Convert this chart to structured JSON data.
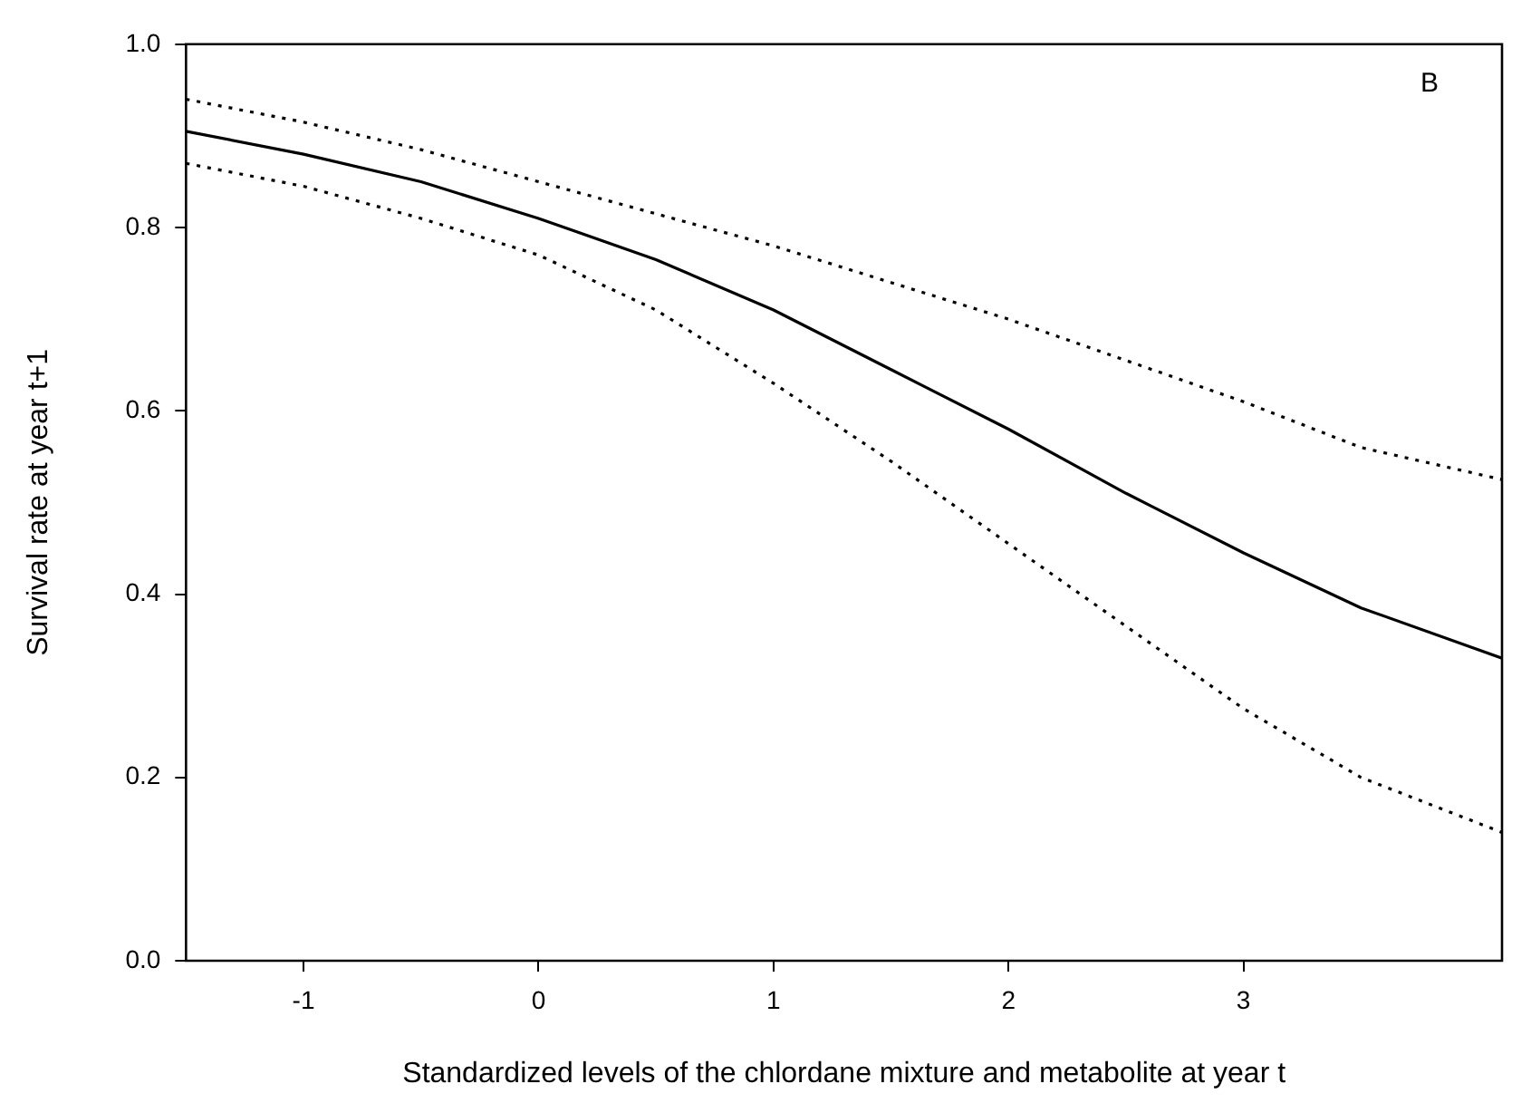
{
  "chart_data": {
    "type": "line",
    "xlabel": "Standardized levels of the chlordane mixture and metabolite at year t",
    "ylabel": "Survival rate at year t+1",
    "annotations": [
      "B"
    ],
    "x": [
      -1.5,
      -1,
      -0.5,
      0,
      0.5,
      1,
      1.5,
      2,
      2.5,
      3,
      3.5,
      4.1
    ],
    "series": [
      {
        "color": "#000000",
        "line_style": "solid",
        "values": [
          0.905,
          0.88,
          0.85,
          0.81,
          0.765,
          0.71,
          0.645,
          0.58,
          0.51,
          0.445,
          0.385,
          0.33
        ]
      },
      {
        "color": "#000000",
        "line_style": "dotted",
        "values": [
          0.94,
          0.915,
          0.885,
          0.85,
          0.815,
          0.78,
          0.74,
          0.7,
          0.655,
          0.61,
          0.56,
          0.525
        ]
      },
      {
        "color": "#000000",
        "line_style": "dotted",
        "values": [
          0.87,
          0.845,
          0.81,
          0.77,
          0.71,
          0.63,
          0.545,
          0.455,
          0.365,
          0.275,
          0.2,
          0.14
        ]
      }
    ],
    "xlim": [
      -1.5,
      4.1
    ],
    "xticks": [
      -1,
      0,
      1,
      2,
      3
    ],
    "ylim": [
      0,
      1
    ],
    "yticks": [
      {
        "value": 0,
        "label": "0.0"
      },
      0.2,
      0.4,
      0.6,
      0.8,
      {
        "value": 1,
        "label": "1.0"
      }
    ],
    "grid": false,
    "legend": false,
    "marker": "none"
  }
}
